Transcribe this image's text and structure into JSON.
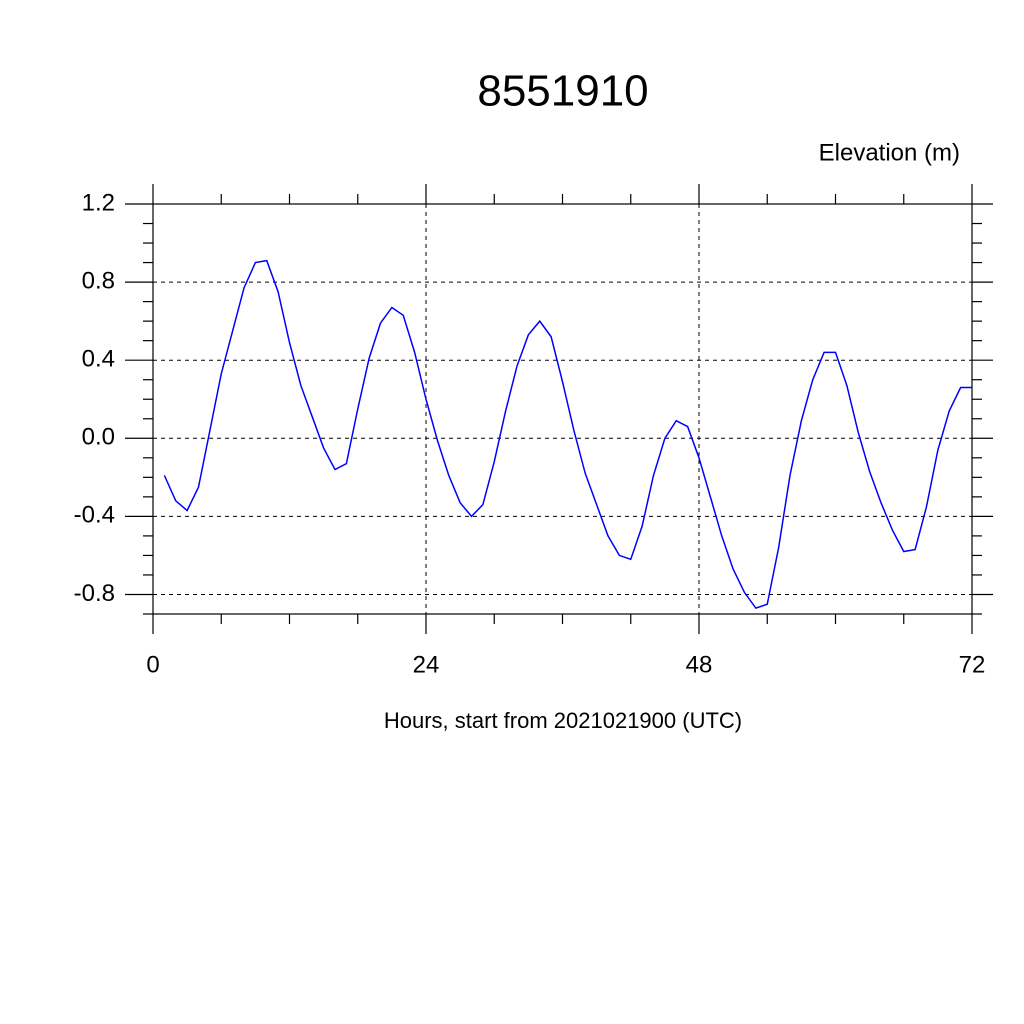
{
  "chart_data": {
    "type": "line",
    "title": "8551910",
    "subtitle": "Elevation (m)",
    "xlabel": "Hours, start from 2021021900 (UTC)",
    "x": [
      1,
      2,
      3,
      4,
      5,
      6,
      7,
      8,
      9,
      10,
      11,
      12,
      13,
      14,
      15,
      16,
      17,
      18,
      19,
      20,
      21,
      22,
      23,
      24,
      25,
      26,
      27,
      28,
      29,
      30,
      31,
      32,
      33,
      34,
      35,
      36,
      37,
      38,
      39,
      40,
      41,
      42,
      43,
      44,
      45,
      46,
      47,
      48,
      49,
      50,
      51,
      52,
      53,
      54,
      55,
      56,
      57,
      58,
      59,
      60,
      61,
      62,
      63,
      64,
      65,
      66,
      67,
      68,
      69,
      70,
      71,
      72
    ],
    "series": [
      {
        "name": "Elevation",
        "color": "#0000ff",
        "values": [
          -0.19,
          -0.32,
          -0.37,
          -0.25,
          0.04,
          0.33,
          0.55,
          0.77,
          0.9,
          0.91,
          0.75,
          0.49,
          0.27,
          0.11,
          -0.05,
          -0.16,
          -0.13,
          0.15,
          0.41,
          0.59,
          0.67,
          0.63,
          0.44,
          0.2,
          -0.01,
          -0.19,
          -0.33,
          -0.4,
          -0.34,
          -0.12,
          0.14,
          0.37,
          0.53,
          0.6,
          0.52,
          0.29,
          0.04,
          -0.18,
          -0.34,
          -0.5,
          -0.6,
          -0.62,
          -0.45,
          -0.19,
          0.0,
          0.09,
          0.06,
          -0.1,
          -0.3,
          -0.5,
          -0.67,
          -0.79,
          -0.87,
          -0.85,
          -0.56,
          -0.19,
          0.09,
          0.3,
          0.44,
          0.44,
          0.27,
          0.03,
          -0.17,
          -0.33,
          -0.47,
          -0.58,
          -0.57,
          -0.35,
          -0.06,
          0.14,
          0.26,
          0.26
        ]
      }
    ],
    "xlim": [
      0,
      72
    ],
    "xticks": [
      0,
      24,
      48,
      72
    ],
    "xminorticks": [
      6,
      12,
      18,
      30,
      36,
      42,
      54,
      60,
      66
    ],
    "ylim": [
      -0.9,
      1.2
    ],
    "yticks": [
      -0.8,
      -0.4,
      {
        "value": 0,
        "label": "0.0"
      },
      0.4,
      0.8,
      1.2
    ],
    "yminorticks": [
      -0.9,
      -0.7,
      -0.6,
      -0.5,
      -0.3,
      -0.2,
      -0.1,
      0.1,
      0.2,
      0.3,
      0.5,
      0.6,
      0.7,
      0.9,
      1.0,
      1.1
    ],
    "grid": true
  }
}
